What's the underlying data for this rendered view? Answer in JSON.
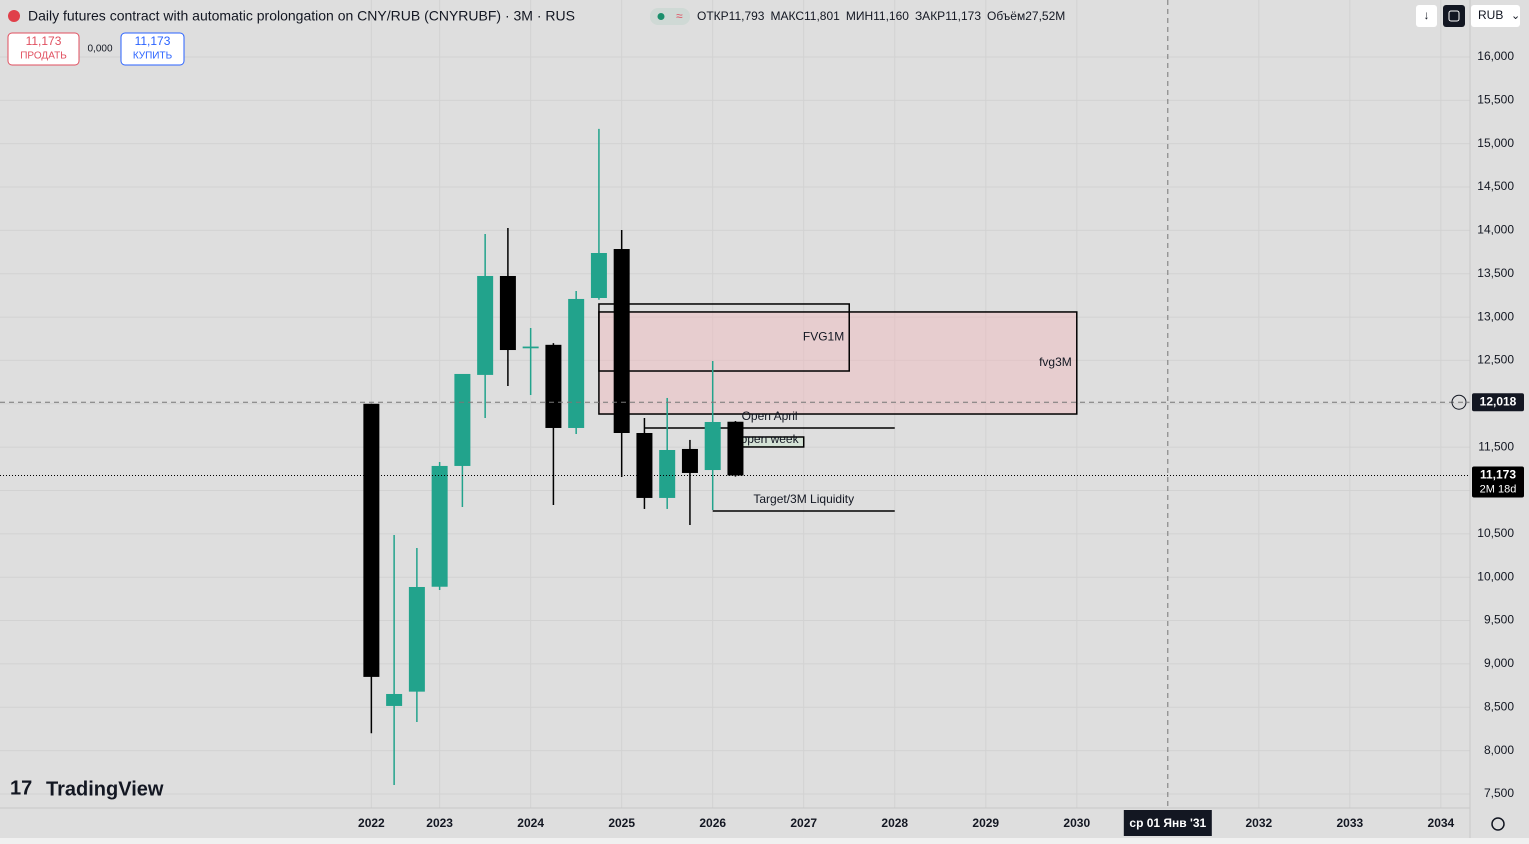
{
  "header": {
    "title": "Daily futures contract with automatic prolongation on CNY/RUB (CNYRUBF) · 3M · RUS",
    "open_label": "ОТКР",
    "open": "11,793",
    "high_label": "МАКС",
    "high": "11,801",
    "low_label": "МИН",
    "low": "11,160",
    "close_label": "ЗАКР",
    "close": "11,173",
    "volume_label": "Объём",
    "volume": "27,52M"
  },
  "trade": {
    "sell_price": "11,173",
    "sell_label": "ПРОДАТЬ",
    "spread": "0,000",
    "buy_price": "11,173",
    "buy_label": "КУПИТЬ"
  },
  "currency": "RUB",
  "logo": "TradingView",
  "chart_data": {
    "type": "candlestick",
    "x": [
      2022.25,
      2022.5,
      2022.75,
      2023,
      2023.25,
      2023.5,
      2023.75,
      2024,
      2024.25,
      2024.5,
      2024.75,
      2025,
      2025.25,
      2025.5,
      2025.75,
      2026,
      2026.25
    ],
    "open": [
      12000,
      8515,
      8680,
      9890,
      11283,
      12333,
      13474,
      12640,
      12680,
      11721,
      13220,
      13785,
      11663,
      10914,
      11479,
      11236,
      11793
    ],
    "high": [
      12000,
      10487,
      10337,
      11329,
      12344,
      13958,
      14028,
      12874,
      12700,
      13301,
      15170,
      14005,
      11836,
      12067,
      11583,
      12494,
      11801
    ],
    "low": [
      8200,
      7603,
      8330,
      9852,
      10810,
      11836,
      12205,
      12101,
      10833,
      11652,
      13200,
      11156,
      10787,
      10787,
      10602,
      10775,
      11160
    ],
    "close": [
      8850,
      8653,
      9887,
      11283,
      12344,
      13474,
      12620,
      12660,
      11721,
      13209,
      13739,
      11663,
      10914,
      11467,
      11202,
      11790,
      11173
    ],
    "up_color": "#22a38c",
    "down_color": "#000000",
    "xlim": [
      2018.17,
      2034.32
    ],
    "ylim": [
      7338,
      16657
    ],
    "xticks": [
      {
        "value": 2022.25,
        "label": "2022"
      },
      2023,
      2024,
      2025,
      2026,
      2027,
      2028,
      2029,
      2030,
      2032,
      2033,
      2034
    ],
    "yticks": [
      {
        "value": 7500,
        "label": "7,500"
      },
      {
        "value": 8000,
        "label": "8,000"
      },
      {
        "value": 8500,
        "label": "8,500"
      },
      {
        "value": 9000,
        "label": "9,000"
      },
      {
        "value": 9500,
        "label": "9,500"
      },
      {
        "value": 10000,
        "label": "10,000"
      },
      {
        "value": 10500,
        "label": "10,500"
      },
      {
        "value": 11000,
        "label": "11,000"
      },
      {
        "value": 11500,
        "label": "11,500"
      },
      {
        "value": 12000,
        "label": "12,000"
      },
      {
        "value": 12500,
        "label": "12,500"
      },
      {
        "value": 13000,
        "label": "13,000"
      },
      {
        "value": 13500,
        "label": "13,500"
      },
      {
        "value": 14000,
        "label": "14,000"
      },
      {
        "value": 14500,
        "label": "14,500"
      },
      {
        "value": 15000,
        "label": "15,000"
      },
      {
        "value": 15500,
        "label": "15,500"
      },
      {
        "value": 16000,
        "label": "16,000"
      }
    ],
    "grid": true,
    "last_price": {
      "value": 11173,
      "label": "11,173",
      "countdown": "2M 18d"
    },
    "crosshair": {
      "x": {
        "value": 2031,
        "label": "ср 01 Янв '31"
      },
      "y": {
        "value": 12018,
        "label": "12,018"
      }
    },
    "annotations": [
      {
        "shape": "rect",
        "label": "fvg3M",
        "x": [
          2024.75,
          2030
        ],
        "y": [
          11882,
          13059
        ],
        "color": "#f2b8bd"
      },
      {
        "shape": "rect",
        "label": "FVG1M",
        "x": [
          2024.75,
          2027.5
        ],
        "y": [
          12378,
          13151
        ]
      },
      {
        "shape": "line",
        "label": "Open April",
        "x": [
          2025.25,
          2028
        ],
        "y": [
          11721
        ]
      },
      {
        "shape": "rect",
        "label": "open week",
        "x": [
          2026.25,
          2027
        ],
        "y": [
          11502,
          11617
        ],
        "color": "#c8e6c9"
      },
      {
        "shape": "line",
        "label": "Target/3M Liquidity",
        "x": [
          2026,
          2028
        ],
        "y": [
          10764
        ]
      }
    ]
  }
}
